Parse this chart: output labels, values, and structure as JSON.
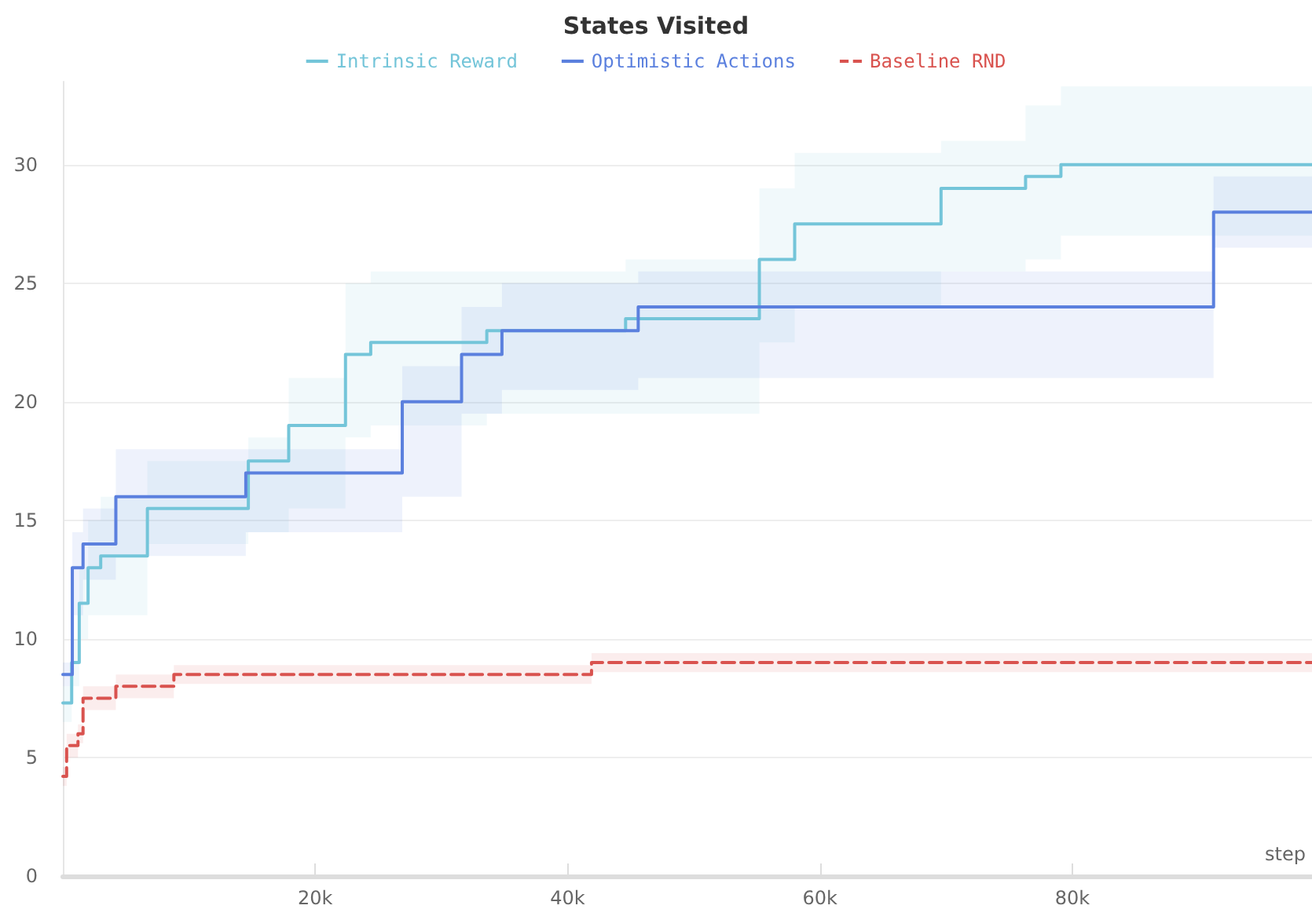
{
  "chart_data": {
    "type": "step",
    "title": "States Visited",
    "xlabel": "step",
    "legend": "top",
    "grid": "y",
    "marker": "none",
    "xlim": [
      0,
      99000
    ],
    "xticks": [
      {
        "value": 20000,
        "label": "20k"
      },
      {
        "value": 40000,
        "label": "40k"
      },
      {
        "value": 60000,
        "label": "60k"
      },
      {
        "value": 80000,
        "label": "80k"
      }
    ],
    "ylim": [
      0,
      33.5
    ],
    "yticks": [
      0,
      5,
      10,
      15,
      20,
      25,
      30
    ],
    "series": [
      {
        "name": "Intrinsic Reward",
        "color": "#74c5d9",
        "line_style": "solid",
        "x": [
          0,
          700,
          1300,
          2000,
          3000,
          6700,
          14700,
          17900,
          22400,
          24400,
          33600,
          44600,
          55200,
          58000,
          69600,
          76300,
          79100,
          99000
        ],
        "values": [
          7.3,
          9,
          11.5,
          13,
          13.5,
          15.5,
          17.5,
          19,
          22,
          22.5,
          23,
          23.5,
          26,
          27.5,
          29,
          29.5,
          30,
          30
        ],
        "lower": [
          6.5,
          8,
          10,
          11,
          11,
          14,
          14.5,
          15.5,
          18.5,
          19,
          19.5,
          19.5,
          22.5,
          24,
          25.5,
          26,
          27,
          26
        ],
        "upper": [
          8,
          10,
          13,
          15,
          16,
          17.5,
          18.5,
          21,
          25,
          25.5,
          25.5,
          26,
          29,
          30.5,
          31,
          32.5,
          33.3,
          33
        ]
      },
      {
        "name": "Optimistic Actions",
        "color": "#5b80de",
        "line_style": "solid",
        "x": [
          0,
          750,
          1600,
          4200,
          14500,
          26900,
          31600,
          34800,
          45600,
          91200,
          99000
        ],
        "values": [
          8.5,
          13,
          14,
          16,
          17,
          20,
          22,
          23,
          24,
          28,
          28
        ],
        "lower": [
          8,
          11,
          12.5,
          13.5,
          14.5,
          16,
          19.5,
          20.5,
          21,
          26.5,
          26
        ],
        "upper": [
          9,
          14.5,
          15.5,
          18,
          18,
          21.5,
          24,
          25,
          25.5,
          29.5,
          29.5
        ]
      },
      {
        "name": "Baseline RND",
        "color": "#d9534f",
        "line_style": "dashed",
        "x": [
          0,
          300,
          1200,
          1600,
          4200,
          8800,
          41900,
          99000
        ],
        "values": [
          4.2,
          5.5,
          6,
          7.5,
          8,
          8.5,
          9,
          9
        ],
        "lower": [
          3.8,
          5,
          5.6,
          7,
          7.5,
          8.1,
          8.6,
          8.6
        ],
        "upper": [
          4.6,
          6,
          6.4,
          8,
          8.5,
          8.9,
          9.4,
          9.4
        ]
      }
    ]
  }
}
